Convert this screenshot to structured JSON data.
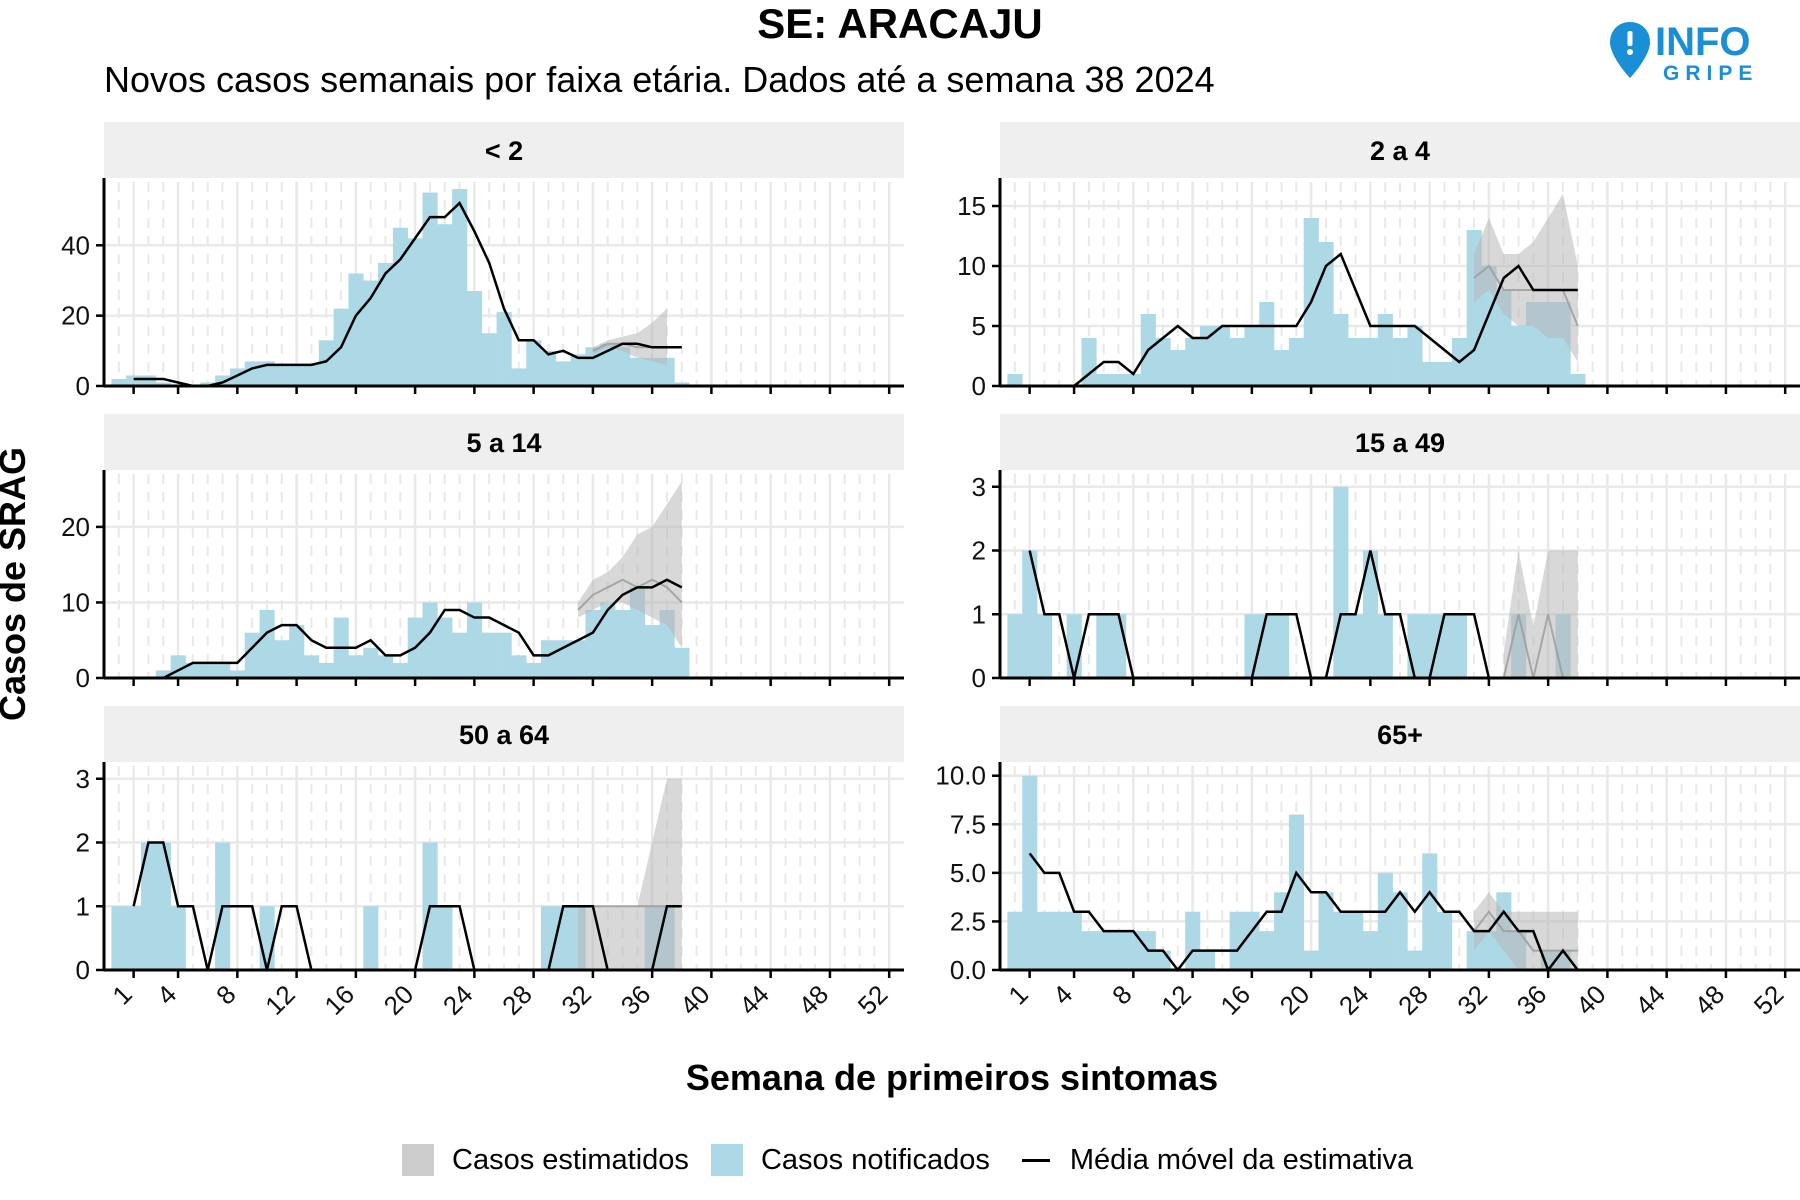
{
  "header": {
    "title": "SE: ARACAJU",
    "subtitle": "Novos casos semanais por faixa etária. Dados até a semana 38 2024",
    "logo_main": "INFO",
    "logo_sub": "GRIPE"
  },
  "colors": {
    "notified": "#add8e6",
    "estimated": "#b8b8b8",
    "line": "#000000",
    "strip": "#efefef",
    "grid": "#e9e9e9",
    "logo": "#1a8fd6"
  },
  "legend": {
    "estimated_label": "Casos estimatidos",
    "notified_label": "Casos notificados",
    "line_label": "Média móvel da estimativa"
  },
  "chart_data": {
    "type": "bar",
    "xlabel": "Semana de primeiros sintomas",
    "ylabel": "Casos de SRAG",
    "x_ticks": [
      1,
      4,
      8,
      12,
      16,
      20,
      24,
      28,
      32,
      36,
      40,
      44,
      48,
      52
    ],
    "xlim": [
      -1,
      53
    ],
    "grid": true,
    "legend_position": "bottom",
    "panels": [
      {
        "name": "< 2",
        "ylim": [
          0,
          58
        ],
        "y_ticks": [
          0,
          20,
          40
        ],
        "y_tick_labels": [
          "0",
          "20",
          "40"
        ],
        "notified": [
          2,
          3,
          3,
          1,
          0,
          0,
          1,
          3,
          5,
          7,
          7,
          6,
          6,
          6,
          13,
          22,
          32,
          30,
          35,
          45,
          42,
          55,
          46,
          56,
          27,
          15,
          21,
          5,
          13,
          10,
          7,
          9,
          11,
          12,
          11,
          8,
          8,
          8,
          1
        ],
        "estimate": {
          "weeks": [
            32,
            33,
            34,
            35,
            36,
            37
          ],
          "mean": [
            10,
            12,
            12,
            11,
            11,
            11
          ],
          "lower": [
            9,
            11,
            10,
            8,
            7,
            6
          ],
          "upper": [
            11,
            13,
            14,
            15,
            18,
            22
          ]
        },
        "moving_average": [
          2,
          2,
          2,
          1,
          0,
          0,
          1,
          3,
          5,
          6,
          6,
          6,
          6,
          7,
          11,
          20,
          25,
          32,
          36,
          42,
          48,
          48,
          52,
          44,
          35,
          22,
          13,
          13,
          9,
          10,
          8,
          8,
          10,
          12,
          12,
          11,
          11,
          11
        ]
      },
      {
        "name": "2 a 4",
        "ylim": [
          0,
          17
        ],
        "y_ticks": [
          0,
          5,
          10,
          15
        ],
        "y_tick_labels": [
          "0",
          "5",
          "10",
          "15"
        ],
        "notified": [
          1,
          0,
          0,
          0,
          0,
          4,
          1,
          1,
          1,
          6,
          4,
          3,
          4,
          5,
          5,
          4,
          5,
          7,
          3,
          4,
          14,
          12,
          6,
          4,
          4,
          6,
          4,
          5,
          2,
          2,
          4,
          13,
          10,
          8,
          5,
          7,
          7,
          7,
          1
        ],
        "estimate": {
          "weeks": [
            31,
            32,
            33,
            34,
            35,
            36,
            37,
            38
          ],
          "mean": [
            9,
            10,
            8,
            8,
            8,
            8,
            8,
            5
          ],
          "lower": [
            7,
            8,
            6,
            5,
            5,
            4,
            4,
            2
          ],
          "upper": [
            11,
            14,
            11,
            11,
            12,
            14,
            16,
            10
          ]
        },
        "moving_average": [
          0,
          0,
          0,
          0,
          1,
          2,
          2,
          1,
          3,
          4,
          5,
          4,
          4,
          5,
          5,
          5,
          5,
          5,
          5,
          7,
          10,
          11,
          8,
          5,
          5,
          5,
          5,
          4,
          3,
          2,
          3,
          6,
          9,
          10,
          8,
          8,
          8,
          8
        ]
      },
      {
        "name": "5 a 14",
        "ylim": [
          0,
          27
        ],
        "y_ticks": [
          0,
          10,
          20
        ],
        "y_tick_labels": [
          "0",
          "10",
          "20"
        ],
        "notified": [
          0,
          0,
          0,
          1,
          3,
          2,
          2,
          2,
          1,
          6,
          9,
          5,
          7,
          3,
          2,
          8,
          3,
          4,
          3,
          2,
          8,
          10,
          8,
          6,
          10,
          6,
          6,
          3,
          2,
          5,
          5,
          5,
          9,
          10,
          9,
          12,
          7,
          9,
          4
        ],
        "estimate": {
          "weeks": [
            31,
            32,
            33,
            34,
            35,
            36,
            37,
            38
          ],
          "mean": [
            9,
            11,
            12,
            13,
            12,
            13,
            12,
            10
          ],
          "lower": [
            8,
            9,
            10,
            10,
            9,
            8,
            7,
            4
          ],
          "upper": [
            10,
            13,
            14,
            16,
            19,
            20,
            23,
            26
          ]
        },
        "moving_average": [
          0,
          0,
          0,
          1,
          2,
          2,
          2,
          2,
          4,
          6,
          7,
          7,
          5,
          4,
          4,
          4,
          5,
          3,
          3,
          4,
          6,
          9,
          9,
          8,
          8,
          7,
          6,
          3,
          3,
          4,
          5,
          6,
          9,
          11,
          12,
          12,
          13,
          12
        ]
      },
      {
        "name": "15 a 49",
        "ylim": [
          0,
          3.2
        ],
        "y_ticks": [
          0,
          1,
          2,
          3
        ],
        "y_tick_labels": [
          "0",
          "1",
          "2",
          "3"
        ],
        "notified": [
          1,
          2,
          1,
          0,
          1,
          0,
          1,
          1,
          0,
          0,
          0,
          0,
          0,
          0,
          0,
          0,
          1,
          1,
          1,
          0,
          0,
          0,
          3,
          1,
          2,
          1,
          0,
          1,
          1,
          1,
          1,
          0,
          0,
          0,
          1,
          0,
          0,
          1,
          0
        ],
        "estimate": {
          "weeks": [
            33,
            34,
            35,
            36,
            37,
            38
          ],
          "mean": [
            0,
            1,
            0,
            1,
            0,
            0
          ],
          "lower": [
            0,
            0,
            0,
            0,
            0,
            0
          ],
          "upper": [
            0.4,
            2,
            0.8,
            2,
            2,
            2
          ]
        },
        "moving_average": [
          2,
          1,
          1,
          0,
          1,
          1,
          1,
          0,
          0,
          0,
          0,
          0,
          0,
          0,
          0,
          0,
          1,
          1,
          1,
          0,
          0,
          1,
          1,
          2,
          1,
          1,
          0,
          0,
          1,
          1,
          1,
          0,
          0,
          0,
          0,
          0,
          0,
          0
        ]
      },
      {
        "name": "50 a 64",
        "ylim": [
          0,
          3.2
        ],
        "y_ticks": [
          0,
          1,
          2,
          3
        ],
        "y_tick_labels": [
          "0",
          "1",
          "2",
          "3"
        ],
        "notified": [
          1,
          1,
          2,
          2,
          1,
          0,
          0,
          2,
          0,
          0,
          1,
          0,
          0,
          0,
          0,
          0,
          0,
          1,
          0,
          0,
          0,
          2,
          1,
          0,
          0,
          0,
          0,
          0,
          0,
          1,
          1,
          1,
          0,
          0,
          0,
          0,
          1,
          1,
          0
        ],
        "estimate": {
          "weeks": [
            31,
            32,
            33,
            34,
            35,
            36,
            37,
            38
          ],
          "mean": [
            1,
            1,
            1,
            1,
            1,
            1,
            1,
            1
          ],
          "lower": [
            0,
            0,
            0,
            0,
            0,
            0,
            0,
            0
          ],
          "upper": [
            1,
            1,
            1,
            1,
            1,
            2,
            3,
            3
          ]
        },
        "moving_average": [
          1,
          2,
          2,
          1,
          1,
          0,
          1,
          1,
          1,
          0,
          1,
          1,
          0,
          0,
          0,
          0,
          0,
          0,
          0,
          0,
          1,
          1,
          1,
          0,
          0,
          0,
          0,
          0,
          0,
          1,
          1,
          1,
          0,
          0,
          0,
          0,
          1,
          1
        ]
      },
      {
        "name": "65+",
        "ylim": [
          0,
          10.5
        ],
        "y_ticks": [
          0,
          2.5,
          5,
          7.5,
          10
        ],
        "y_tick_labels": [
          "0.0",
          "2.5",
          "5.0",
          "7.5",
          "10.0"
        ],
        "notified": [
          3,
          10,
          3,
          3,
          3,
          2,
          2,
          2,
          2,
          2,
          1,
          0,
          3,
          1,
          0,
          3,
          3,
          2,
          4,
          8,
          1,
          4,
          3,
          3,
          2,
          5,
          4,
          1,
          6,
          3,
          0,
          2,
          2,
          4,
          2,
          0,
          1,
          1,
          0
        ],
        "estimate": {
          "weeks": [
            31,
            32,
            33,
            34,
            35,
            36,
            37,
            38
          ],
          "mean": [
            2,
            3,
            2,
            2,
            1,
            1,
            1,
            1
          ],
          "lower": [
            1,
            2,
            1,
            0,
            0,
            0,
            0,
            0
          ],
          "upper": [
            3,
            4,
            3,
            3,
            3,
            3,
            3,
            3
          ]
        },
        "moving_average": [
          6,
          5,
          5,
          3,
          3,
          2,
          2,
          2,
          1,
          1,
          0,
          1,
          1,
          1,
          1,
          2,
          3,
          3,
          5,
          4,
          4,
          3,
          3,
          3,
          3,
          4,
          3,
          4,
          3,
          3,
          2,
          2,
          3,
          2,
          2,
          0,
          1,
          0
        ]
      }
    ]
  }
}
